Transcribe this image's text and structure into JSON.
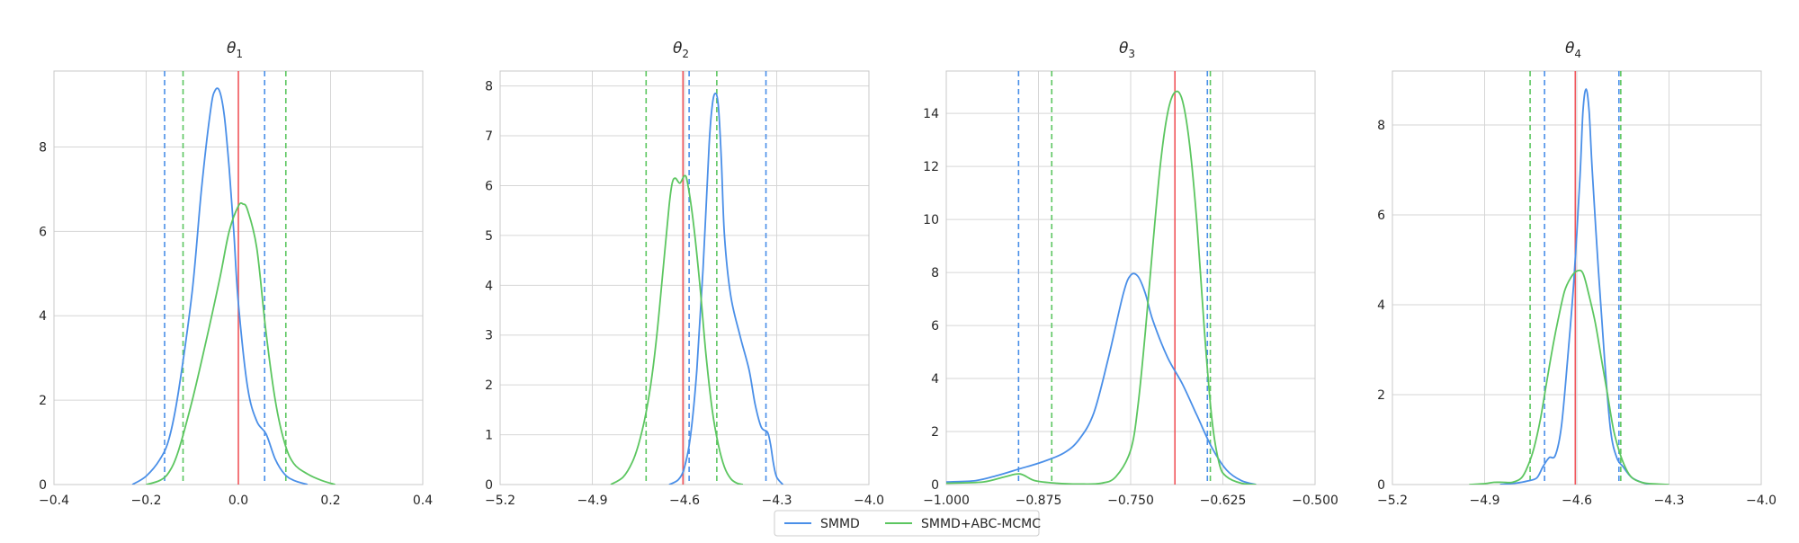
{
  "chart_data": [
    {
      "type": "line",
      "title": "θ",
      "title_subscript": "1",
      "xlim": [
        -0.4,
        0.4
      ],
      "ylim": [
        0,
        9.8
      ],
      "xticks": [
        -0.4,
        -0.2,
        0.0,
        0.2,
        0.4
      ],
      "xtick_labels": [
        "−0.4",
        "−0.2",
        "0.0",
        "0.2",
        "0.4"
      ],
      "yticks": [
        0,
        2,
        4,
        6,
        8
      ],
      "ytick_labels": [
        "0",
        "2",
        "4",
        "6",
        "8"
      ],
      "grid": true,
      "true_value": 0.0,
      "series": [
        {
          "name": "SMMD",
          "color": "#4a8fe8",
          "x": [
            -0.23,
            -0.2,
            -0.17,
            -0.15,
            -0.13,
            -0.1,
            -0.08,
            -0.06,
            -0.05,
            -0.04,
            -0.03,
            -0.02,
            -0.01,
            0.0,
            0.02,
            0.04,
            0.06,
            0.08,
            0.1,
            0.12,
            0.15
          ],
          "y": [
            0,
            0.2,
            0.6,
            1.1,
            2.2,
            4.6,
            7.0,
            8.9,
            9.35,
            9.3,
            8.7,
            7.5,
            6.0,
            4.3,
            2.3,
            1.5,
            1.2,
            0.6,
            0.25,
            0.1,
            0
          ],
          "ci": [
            -0.16,
            0.057
          ]
        },
        {
          "name": "SMMD+ABC-MCMC",
          "color": "#5cc660",
          "x": [
            -0.2,
            -0.17,
            -0.15,
            -0.13,
            -0.1,
            -0.07,
            -0.04,
            -0.02,
            0.0,
            0.01,
            0.02,
            0.04,
            0.06,
            0.08,
            0.1,
            0.12,
            0.15,
            0.18,
            0.21
          ],
          "y": [
            0,
            0.1,
            0.3,
            0.8,
            2.0,
            3.4,
            4.9,
            6.0,
            6.6,
            6.65,
            6.5,
            5.6,
            3.6,
            2.0,
            1.0,
            0.5,
            0.25,
            0.1,
            0
          ],
          "ci": [
            -0.12,
            0.103
          ]
        }
      ]
    },
    {
      "type": "line",
      "title": "θ",
      "title_subscript": "2",
      "xlim": [
        -5.2,
        -4.0
      ],
      "ylim": [
        0,
        8.3
      ],
      "xticks": [
        -5.2,
        -4.9,
        -4.6,
        -4.3,
        -4.0
      ],
      "xtick_labels": [
        "−5.2",
        "−4.9",
        "−4.6",
        "−4.3",
        "−4.0"
      ],
      "yticks": [
        0,
        1,
        2,
        3,
        4,
        5,
        6,
        7,
        8
      ],
      "ytick_labels": [
        "0",
        "1",
        "2",
        "3",
        "4",
        "5",
        "6",
        "7",
        "8"
      ],
      "grid": true,
      "true_value": -4.605,
      "series": [
        {
          "name": "SMMD",
          "color": "#4a8fe8",
          "x": [
            -4.65,
            -4.62,
            -4.6,
            -4.58,
            -4.56,
            -4.54,
            -4.52,
            -4.51,
            -4.5,
            -4.49,
            -4.48,
            -4.47,
            -4.45,
            -4.42,
            -4.39,
            -4.37,
            -4.35,
            -4.33,
            -4.32,
            -4.31,
            -4.3,
            -4.28
          ],
          "y": [
            0,
            0.1,
            0.35,
            1.0,
            2.3,
            4.3,
            6.8,
            7.6,
            7.85,
            7.6,
            6.5,
            5.0,
            3.8,
            3.0,
            2.3,
            1.6,
            1.15,
            1.05,
            0.8,
            0.4,
            0.15,
            0
          ],
          "ci": [
            -4.585,
            -4.335
          ]
        },
        {
          "name": "SMMD+ABC-MCMC",
          "color": "#5cc660",
          "x": [
            -4.84,
            -4.8,
            -4.77,
            -4.75,
            -4.73,
            -4.71,
            -4.69,
            -4.67,
            -4.65,
            -4.64,
            -4.63,
            -4.615,
            -4.6,
            -4.59,
            -4.57,
            -4.55,
            -4.53,
            -4.51,
            -4.49,
            -4.47,
            -4.45,
            -4.43,
            -4.41
          ],
          "y": [
            0,
            0.15,
            0.45,
            0.8,
            1.3,
            2.0,
            3.0,
            4.3,
            5.6,
            6.05,
            6.15,
            6.05,
            6.2,
            6.05,
            5.2,
            4.0,
            2.6,
            1.5,
            0.8,
            0.35,
            0.12,
            0.03,
            0
          ],
          "ci": [
            -4.725,
            -4.495
          ]
        }
      ]
    },
    {
      "type": "line",
      "title": "θ",
      "title_subscript": "3",
      "xlim": [
        -1.0,
        -0.5
      ],
      "ylim": [
        0,
        15.6
      ],
      "xticks": [
        -1.0,
        -0.875,
        -0.75,
        -0.625,
        -0.5
      ],
      "xtick_labels": [
        "−1.000",
        "−0.875",
        "−0.750",
        "−0.625",
        "−0.500"
      ],
      "yticks": [
        0,
        2,
        4,
        6,
        8,
        10,
        12,
        14
      ],
      "ytick_labels": [
        "0",
        "2",
        "4",
        "6",
        "8",
        "10",
        "12",
        "14"
      ],
      "grid": true,
      "true_value": -0.69,
      "series": [
        {
          "name": "SMMD",
          "color": "#4a8fe8",
          "x": [
            -1.0,
            -0.96,
            -0.93,
            -0.9,
            -0.87,
            -0.84,
            -0.82,
            -0.8,
            -0.78,
            -0.76,
            -0.75,
            -0.74,
            -0.73,
            -0.72,
            -0.7,
            -0.68,
            -0.66,
            -0.64,
            -0.62,
            -0.6,
            -0.58
          ],
          "y": [
            0.1,
            0.15,
            0.35,
            0.6,
            0.85,
            1.2,
            1.7,
            2.7,
            4.8,
            7.2,
            7.9,
            7.85,
            7.2,
            6.2,
            4.8,
            3.8,
            2.6,
            1.4,
            0.55,
            0.15,
            0
          ],
          "ci": [
            -0.902,
            -0.646
          ]
        },
        {
          "name": "SMMD+ABC-MCMC",
          "color": "#5cc660",
          "x": [
            -1.0,
            -0.95,
            -0.92,
            -0.9,
            -0.88,
            -0.85,
            -0.82,
            -0.79,
            -0.77,
            -0.75,
            -0.74,
            -0.73,
            -0.72,
            -0.71,
            -0.7,
            -0.69,
            -0.68,
            -0.67,
            -0.66,
            -0.65,
            -0.64,
            -0.63,
            -0.62,
            -0.6,
            -0.58
          ],
          "y": [
            0.05,
            0.1,
            0.3,
            0.4,
            0.15,
            0.05,
            0.02,
            0.05,
            0.3,
            1.3,
            3.0,
            5.8,
            9.0,
            12.0,
            14.0,
            14.8,
            14.5,
            12.8,
            9.8,
            5.8,
            2.5,
            0.8,
            0.3,
            0.05,
            0
          ],
          "ci": [
            -0.857,
            -0.642
          ]
        }
      ]
    },
    {
      "type": "line",
      "title": "θ",
      "title_subscript": "4",
      "xlim": [
        -5.2,
        -4.0
      ],
      "ylim": [
        0,
        9.2
      ],
      "xticks": [
        -5.2,
        -4.9,
        -4.6,
        -4.3,
        -4.0
      ],
      "xtick_labels": [
        "−5.2",
        "−4.9",
        "−4.6",
        "−4.3",
        "−4.0"
      ],
      "yticks": [
        0,
        2,
        4,
        6,
        8
      ],
      "ytick_labels": [
        "0",
        "2",
        "4",
        "6",
        "8"
      ],
      "grid": true,
      "true_value": -4.605,
      "series": [
        {
          "name": "SMMD",
          "color": "#4a8fe8",
          "x": [
            -4.85,
            -4.8,
            -4.76,
            -4.73,
            -4.71,
            -4.69,
            -4.67,
            -4.65,
            -4.63,
            -4.61,
            -4.59,
            -4.58,
            -4.57,
            -4.56,
            -4.55,
            -4.53,
            -4.51,
            -4.49,
            -4.47,
            -4.45,
            -4.42,
            -4.38,
            -4.35
          ],
          "y": [
            0,
            0.03,
            0.08,
            0.15,
            0.4,
            0.6,
            0.65,
            1.3,
            2.8,
            4.5,
            6.8,
            8.3,
            8.8,
            8.3,
            7.0,
            4.8,
            2.8,
            1.2,
            0.6,
            0.4,
            0.15,
            0.03,
            0
          ],
          "ci": [
            -4.705,
            -4.463
          ]
        },
        {
          "name": "SMMD+ABC-MCMC",
          "color": "#5cc660",
          "x": [
            -4.95,
            -4.9,
            -4.87,
            -4.84,
            -4.81,
            -4.78,
            -4.76,
            -4.74,
            -4.72,
            -4.7,
            -4.68,
            -4.66,
            -4.64,
            -4.62,
            -4.6,
            -4.58,
            -4.56,
            -4.54,
            -4.52,
            -4.5,
            -4.48,
            -4.46,
            -4.44,
            -4.42,
            -4.39,
            -4.36,
            -4.3
          ],
          "y": [
            0,
            0.02,
            0.05,
            0.05,
            0.05,
            0.15,
            0.4,
            0.8,
            1.4,
            2.2,
            3.0,
            3.7,
            4.3,
            4.6,
            4.75,
            4.7,
            4.2,
            3.6,
            2.8,
            2.0,
            1.2,
            0.7,
            0.35,
            0.15,
            0.05,
            0.02,
            0
          ],
          "ci": [
            -4.752,
            -4.457
          ]
        }
      ]
    }
  ],
  "legend": {
    "placement": "bottom-center",
    "items": [
      {
        "label": "SMMD",
        "color": "#4a8fe8"
      },
      {
        "label": "SMMD+ABC-MCMC",
        "color": "#5cc660"
      }
    ]
  },
  "true_line_color": "#f0555a"
}
